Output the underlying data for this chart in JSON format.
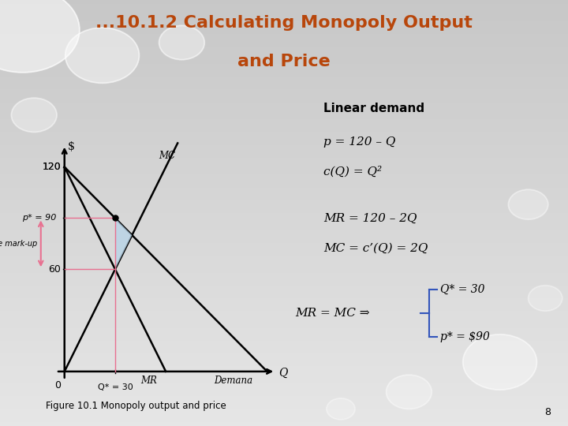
{
  "title_line1": "...10.1.2 Calculating Monopoly Output",
  "title_line2": "and Price",
  "title_color": "#B8460B",
  "bg_color_top": "#C8C8C8",
  "bg_color_bottom": "#E8E8E8",
  "graph": {
    "q_star": 30,
    "p_star": 90,
    "mc_at_qstar": 60,
    "xlabel": "Q",
    "ylabel": "$",
    "figcaption": "Figure 10.1 Monopoly output and price"
  },
  "annotations": {
    "linear_demand_title": "Linear demand",
    "eq1": "p = 120 – Q",
    "eq2": "c(Q) = Q²",
    "eq3": "MR = 120 – 2Q",
    "eq4": "MC = c’(Q) = 2Q",
    "mr_mc_label": "MR = MC ⇒",
    "brace_q": "Q* = 30",
    "brace_p": "p* = $90",
    "absolute_markup": "absolute mark-up"
  }
}
